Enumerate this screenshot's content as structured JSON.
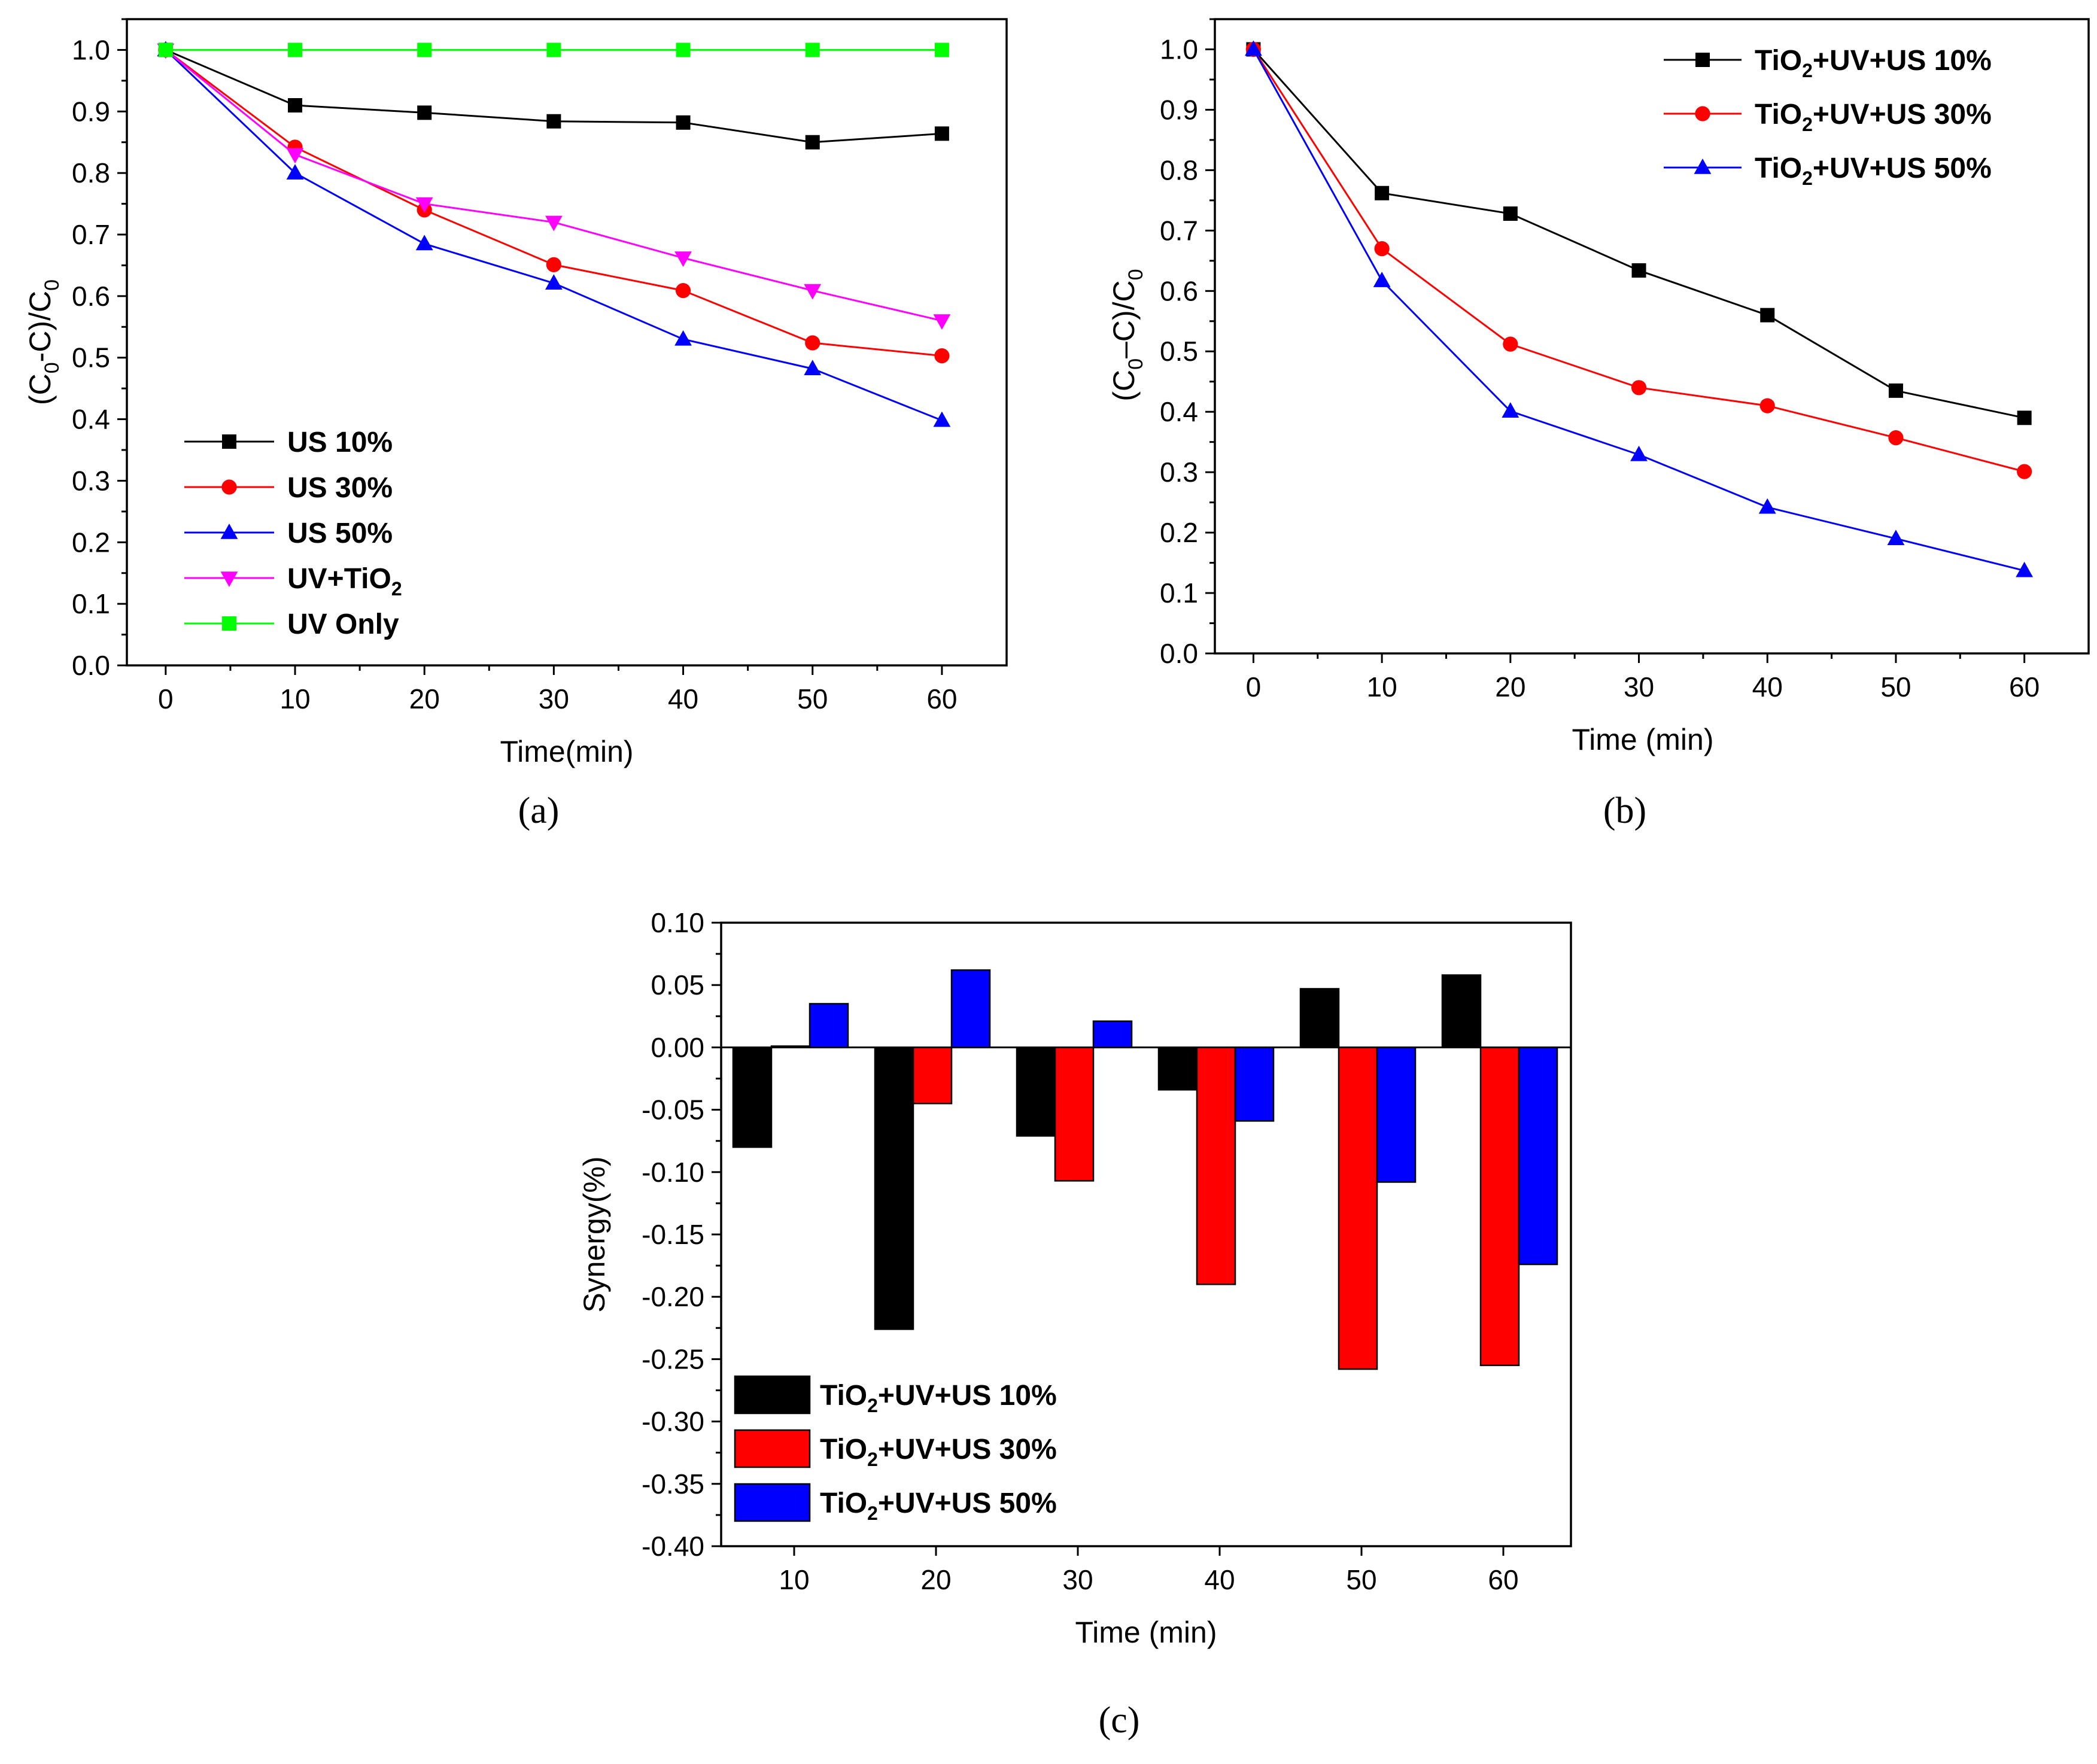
{
  "chart_data": [
    {
      "id": "a",
      "type": "line",
      "caption": "(a)",
      "xlabel": "Time(min)",
      "ylabel": "(C0-C)/C0",
      "x": [
        0,
        10,
        20,
        30,
        40,
        50,
        60
      ],
      "xlim": [
        -3,
        65
      ],
      "ylim": [
        0,
        1.05
      ],
      "xticks": [
        "0",
        "10",
        "20",
        "30",
        "40",
        "50",
        "60"
      ],
      "yticks": [
        "0.0",
        "0.1",
        "0.2",
        "0.3",
        "0.4",
        "0.5",
        "0.6",
        "0.7",
        "0.8",
        "0.9",
        "1.0"
      ],
      "legend_position": "bottom-left",
      "series": [
        {
          "name": "US  10%",
          "color": "#000000",
          "marker": "square",
          "values": [
            1.0,
            0.91,
            0.898,
            0.884,
            0.882,
            0.85,
            0.864
          ]
        },
        {
          "name": "US  30%",
          "color": "#ff0000",
          "marker": "circle",
          "values": [
            1.0,
            0.842,
            0.74,
            0.651,
            0.609,
            0.524,
            0.503
          ]
        },
        {
          "name": "US  50%",
          "color": "#0000ff",
          "marker": "triangle-up",
          "values": [
            1.0,
            0.8,
            0.685,
            0.621,
            0.53,
            0.482,
            0.398
          ]
        },
        {
          "name": "UV+TiO",
          "sub": "2",
          "color": "#ff00ff",
          "marker": "triangle-down",
          "values": [
            1.0,
            0.83,
            0.75,
            0.72,
            0.662,
            0.609,
            0.56
          ]
        },
        {
          "name": "UV Only",
          "color": "#00ff00",
          "marker": "square",
          "values": [
            1.0,
            1.0,
            1.0,
            1.0,
            1.0,
            1.0,
            1.0
          ]
        }
      ]
    },
    {
      "id": "b",
      "type": "line",
      "caption": "(b)",
      "xlabel": "Time (min)",
      "ylabel": "(C0–C)/C0",
      "x": [
        0,
        10,
        20,
        30,
        40,
        50,
        60
      ],
      "xlim": [
        -3,
        65
      ],
      "ylim": [
        0,
        1.05
      ],
      "xticks": [
        "0",
        "10",
        "20",
        "30",
        "40",
        "50",
        "60"
      ],
      "yticks": [
        "0.0",
        "0.1",
        "0.2",
        "0.3",
        "0.4",
        "0.5",
        "0.6",
        "0.7",
        "0.8",
        "0.9",
        "1.0"
      ],
      "legend_position": "top-right",
      "series": [
        {
          "name": "TiO2+UV+US 10%",
          "color": "#000000",
          "marker": "square",
          "values": [
            1.0,
            0.762,
            0.728,
            0.634,
            0.56,
            0.435,
            0.39
          ]
        },
        {
          "name": "TiO2+UV+US 30%",
          "color": "#ff0000",
          "marker": "circle",
          "values": [
            1.0,
            0.67,
            0.512,
            0.44,
            0.41,
            0.357,
            0.301
          ]
        },
        {
          "name": "TiO2+UV+US 50%",
          "color": "#0000ff",
          "marker": "triangle-up",
          "values": [
            1.0,
            0.617,
            0.401,
            0.329,
            0.242,
            0.19,
            0.137
          ]
        }
      ]
    },
    {
      "id": "c",
      "type": "bar",
      "caption": "(c)",
      "xlabel": "Time (min)",
      "ylabel": "Synergy(%)",
      "categories": [
        "10",
        "20",
        "30",
        "40",
        "50",
        "60"
      ],
      "ylim": [
        -0.4,
        0.1
      ],
      "yticks": [
        "0.10",
        "0.05",
        "0.00",
        "-0.05",
        "-0.10",
        "-0.15",
        "-0.20",
        "-0.25",
        "-0.30",
        "-0.35",
        "-0.40"
      ],
      "legend_position": "bottom-left",
      "series": [
        {
          "name": "TiO2+UV+US 10%",
          "color": "#000000",
          "values": [
            -0.08,
            -0.226,
            -0.071,
            -0.034,
            0.047,
            0.058
          ]
        },
        {
          "name": "TiO2+UV+US 30%",
          "color": "#ff0000",
          "values": [
            0.001,
            -0.045,
            -0.107,
            -0.19,
            -0.258,
            -0.255
          ]
        },
        {
          "name": "TiO2+UV+US 50%",
          "color": "#0000ff",
          "values": [
            0.035,
            0.062,
            0.021,
            -0.059,
            -0.108,
            -0.174
          ]
        }
      ]
    }
  ]
}
